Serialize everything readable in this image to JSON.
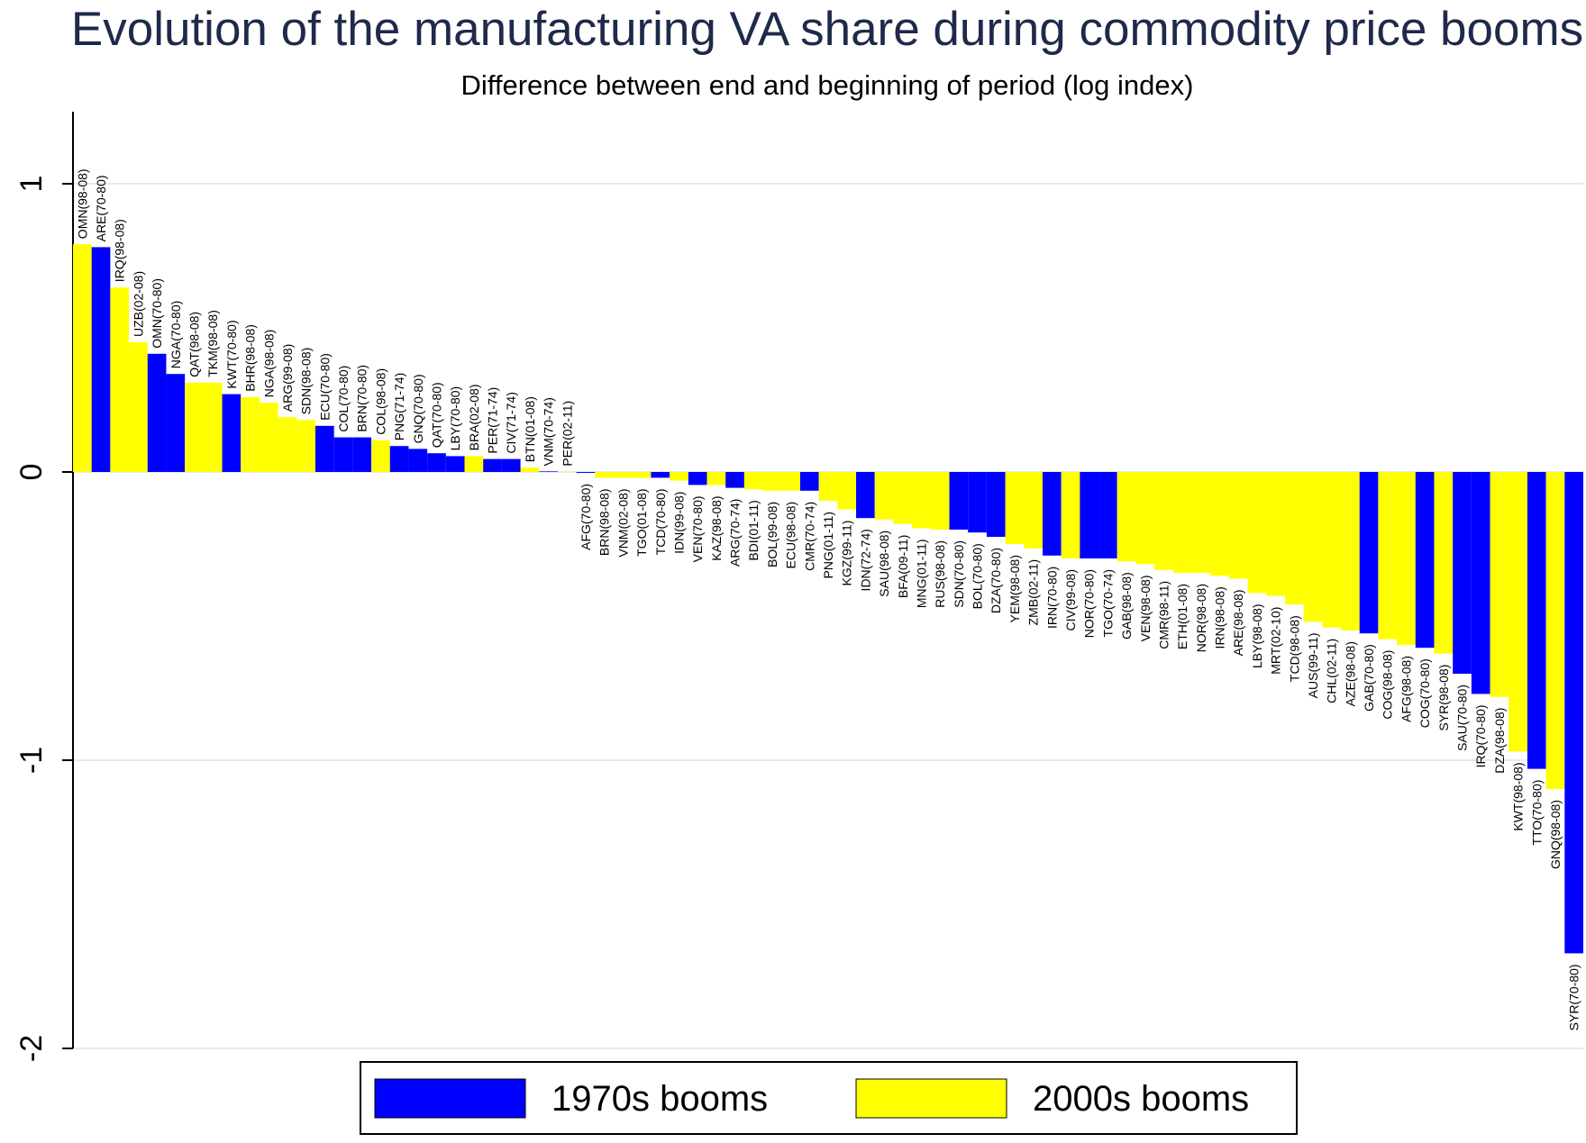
{
  "chart_data": {
    "type": "bar",
    "title": "Evolution of the manufacturing VA share during commodity price booms",
    "subtitle": "Difference between end and beginning of period (log index)",
    "categories": [
      "OMN(98-08)",
      "ARE(70-80)",
      "IRQ(98-08)",
      "UZB(02-08)",
      "OMN(70-80)",
      "NGA(70-80)",
      "QAT(98-08)",
      "TKM(98-08)",
      "KWT(70-80)",
      "BHR(98-08)",
      "NGA(98-08)",
      "ARG(99-08)",
      "SDN(98-08)",
      "ECU(70-80)",
      "COL(70-80)",
      "BRN(70-80)",
      "COL(98-08)",
      "PNG(71-74)",
      "GNQ(70-80)",
      "QAT(70-80)",
      "LBY(70-80)",
      "BRA(02-08)",
      "PER(71-74)",
      "CIV(71-74)",
      "BTN(01-08)",
      "VNM(70-74)",
      "PER(02-11)",
      "AFG(70-80)",
      "BRN(98-08)",
      "VNM(02-08)",
      "TGO(01-08)",
      "TCD(70-80)",
      "IDN(99-08)",
      "VEN(70-80)",
      "KAZ(98-08)",
      "ARG(70-74)",
      "BDI(01-11)",
      "BOL(99-08)",
      "ECU(98-08)",
      "CMR(70-74)",
      "PNG(01-11)",
      "KGZ(99-11)",
      "IDN(72-74)",
      "SAU(98-08)",
      "BFA(09-11)",
      "MNG(01-11)",
      "RUS(98-08)",
      "SDN(70-80)",
      "BOL(70-80)",
      "DZA(70-80)",
      "YEM(98-08)",
      "ZMB(02-11)",
      "IRN(70-80)",
      "CIV(99-08)",
      "NOR(70-80)",
      "TGO(70-74)",
      "GAB(98-08)",
      "VEN(98-08)",
      "CMR(98-11)",
      "ETH(01-08)",
      "NOR(98-08)",
      "IRN(98-08)",
      "ARE(98-08)",
      "LBY(98-08)",
      "MRT(02-10)",
      "TCD(98-08)",
      "AUS(99-11)",
      "CHL(02-11)",
      "AZE(98-08)",
      "GAB(70-80)",
      "COG(98-08)",
      "AFG(98-08)",
      "COG(70-80)",
      "SYR(98-08)",
      "SAU(70-80)",
      "IRQ(70-80)",
      "DZA(98-08)",
      "KWT(98-08)",
      "TTO(70-80)",
      "GNQ(98-08)",
      "SYR(70-80)"
    ],
    "series": [
      {
        "name": "1970s booms",
        "color": "#0000ff",
        "values": [
          null,
          0.78,
          null,
          null,
          0.41,
          0.34,
          null,
          null,
          0.27,
          null,
          null,
          null,
          null,
          0.16,
          0.12,
          0.12,
          null,
          0.09,
          0.08,
          0.065,
          0.055,
          null,
          0.045,
          0.045,
          null,
          0.002,
          null,
          -0.003,
          null,
          null,
          null,
          -0.02,
          null,
          -0.045,
          null,
          -0.055,
          null,
          null,
          null,
          -0.065,
          null,
          null,
          -0.16,
          null,
          null,
          null,
          null,
          -0.2,
          -0.21,
          -0.225,
          null,
          null,
          -0.29,
          null,
          -0.3,
          -0.3,
          null,
          null,
          null,
          null,
          null,
          null,
          null,
          null,
          null,
          null,
          null,
          null,
          null,
          -0.56,
          null,
          null,
          -0.61,
          null,
          -0.7,
          -0.77,
          null,
          null,
          -1.03,
          null,
          -1.67
        ]
      },
      {
        "name": "2000s booms",
        "color": "#ffff00",
        "values": [
          0.79,
          null,
          0.64,
          0.45,
          null,
          null,
          0.31,
          0.31,
          null,
          0.26,
          0.24,
          0.19,
          0.18,
          null,
          null,
          null,
          0.11,
          null,
          null,
          null,
          null,
          0.055,
          null,
          null,
          0.015,
          null,
          0.001,
          null,
          -0.02,
          -0.02,
          -0.02,
          null,
          -0.03,
          null,
          -0.045,
          null,
          -0.06,
          -0.065,
          -0.065,
          null,
          -0.1,
          -0.13,
          null,
          -0.165,
          -0.18,
          -0.195,
          -0.2,
          null,
          null,
          null,
          -0.25,
          -0.265,
          null,
          -0.3,
          null,
          null,
          -0.31,
          -0.32,
          -0.34,
          -0.35,
          -0.35,
          -0.36,
          -0.37,
          -0.42,
          -0.43,
          -0.46,
          -0.52,
          -0.54,
          -0.55,
          null,
          -0.58,
          -0.6,
          null,
          -0.63,
          null,
          null,
          -0.78,
          -0.97,
          null,
          -1.1,
          null
        ]
      }
    ],
    "ylim": [
      -2,
      1.25
    ],
    "yticks": [
      -2,
      -1,
      0,
      1
    ],
    "grid": true
  }
}
